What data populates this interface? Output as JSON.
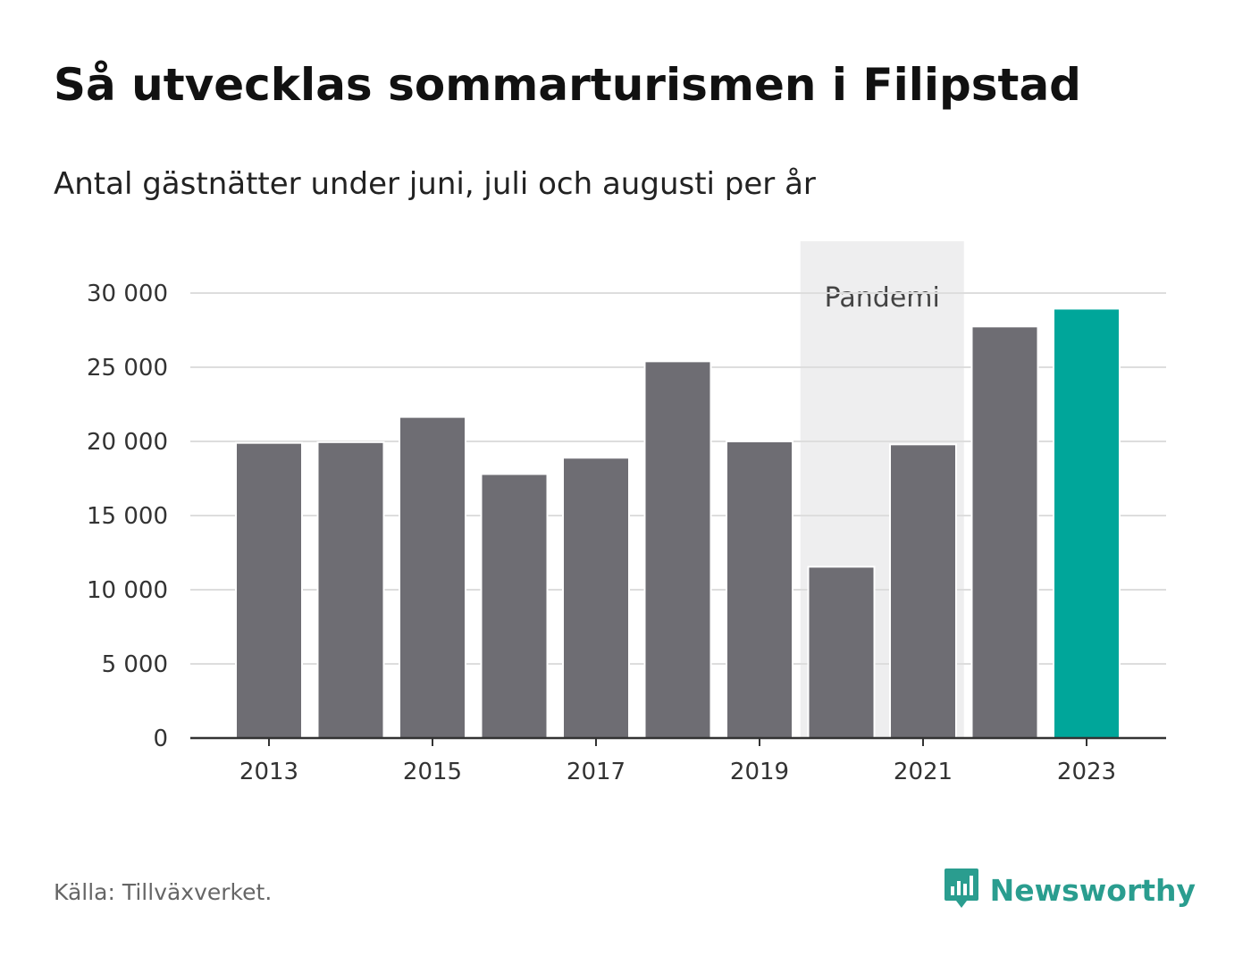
{
  "header": {
    "title": "Så utvecklas sommarturismen i Filipstad",
    "subtitle": "Antal gästnätter under juni, juli och augusti per år"
  },
  "footer": {
    "source": "Källa: Tillväxverket.",
    "brand": "Newsworthy"
  },
  "colors": {
    "bar_default": "#6e6d73",
    "bar_highlight": "#00a69a",
    "band": "#eeeeef",
    "gridline": "#dddddd",
    "axis": "#333333",
    "brand": "#2a9d8f"
  },
  "icons": {
    "brand_logo": "bar-chart-speech-bubble-icon"
  },
  "chart_data": {
    "type": "bar",
    "categories": [
      2013,
      2014,
      2015,
      2016,
      2017,
      2018,
      2019,
      2020,
      2021,
      2022,
      2023
    ],
    "values": [
      19900,
      19950,
      21650,
      17800,
      18900,
      25400,
      20000,
      11550,
      19800,
      27750,
      28950
    ],
    "highlight": [
      2023
    ],
    "x_tick_labels": [
      "2013",
      "2015",
      "2017",
      "2019",
      "2021",
      "2023"
    ],
    "x_tick_values": [
      2013,
      2015,
      2017,
      2019,
      2021,
      2023
    ],
    "y_ticks": [
      0,
      5000,
      10000,
      15000,
      20000,
      25000,
      30000
    ],
    "y_tick_labels": [
      "0",
      "5 000",
      "10 000",
      "15 000",
      "20 000",
      "25 000",
      "30 000"
    ],
    "ylim": [
      0,
      30000
    ],
    "grid": true,
    "legend": "none",
    "annotation_band": {
      "label": "Pandemi",
      "from": 2020,
      "to": 2021
    }
  }
}
